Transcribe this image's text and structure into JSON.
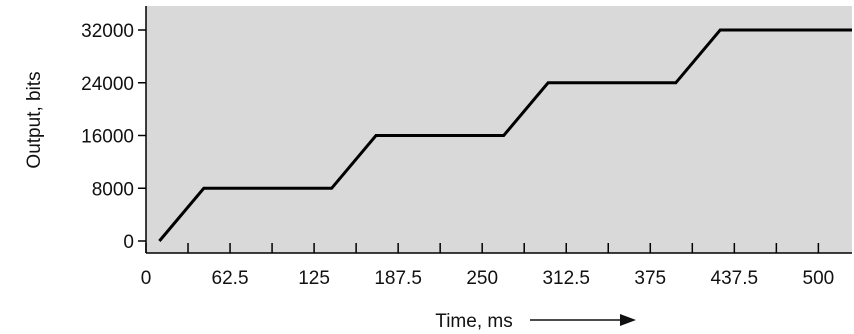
{
  "chart_data": {
    "type": "line",
    "xlabel": "Time, ms",
    "ylabel": "Output, bits",
    "xlim": [
      0,
      525
    ],
    "ylim": [
      0,
      32000
    ],
    "x_ticks": [
      0,
      62.5,
      125,
      187.5,
      250,
      312.5,
      375,
      437.5,
      500
    ],
    "x_tick_labels": [
      "0",
      "62.5",
      "125",
      "187.5",
      "250",
      "312.5",
      "375",
      "437.5",
      "500"
    ],
    "x_minor_tick_step": 31.25,
    "y_ticks": [
      0,
      8000,
      16000,
      24000,
      32000
    ],
    "y_tick_labels": [
      "0",
      "8000",
      "16000",
      "24000",
      "32000"
    ],
    "grid": false,
    "legend": "none",
    "colors": {
      "plot_background": "#d9d9d9",
      "line": "#000000",
      "axis": "#000000"
    },
    "series": [
      {
        "x": [
          10,
          43,
          138,
          171,
          266,
          299,
          394,
          427,
          525
        ],
        "y": [
          0,
          8000,
          8000,
          16000,
          16000,
          24000,
          24000,
          32000,
          32000
        ]
      }
    ],
    "annotations": [
      {
        "type": "arrow",
        "direction": "right",
        "attached_to": "xlabel"
      }
    ]
  }
}
